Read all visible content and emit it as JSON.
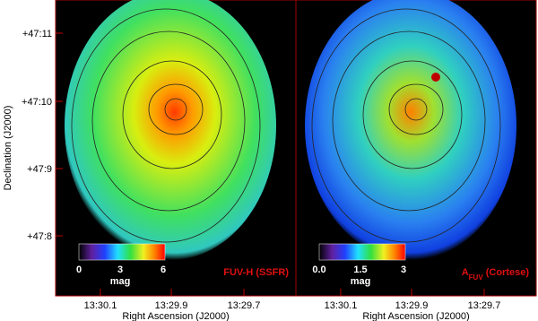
{
  "y_axis": {
    "label": "Declination (J2000)",
    "ticks": [
      "+47:11",
      "+47:10",
      "+47:9",
      "+47:8"
    ]
  },
  "panels": [
    {
      "x_axis": {
        "label": "Right Ascension (J2000)",
        "ticks": [
          "13:30.1",
          "13:29.9",
          "13:29.7"
        ]
      },
      "colorbar": {
        "ticks": [
          "0",
          "3",
          "6"
        ],
        "unit": "mag"
      },
      "title": {
        "main": "FUV-H (SSFR)"
      }
    },
    {
      "x_axis": {
        "label": "Right Ascension (J2000)",
        "ticks": [
          "13:30.1",
          "13:29.9",
          "13:29.7"
        ]
      },
      "colorbar": {
        "ticks": [
          "0.0",
          "1.5",
          "3"
        ],
        "unit": "mag"
      },
      "title": {
        "main": "A",
        "sub": "FUV",
        "rest": " (Cortese)"
      }
    }
  ]
}
